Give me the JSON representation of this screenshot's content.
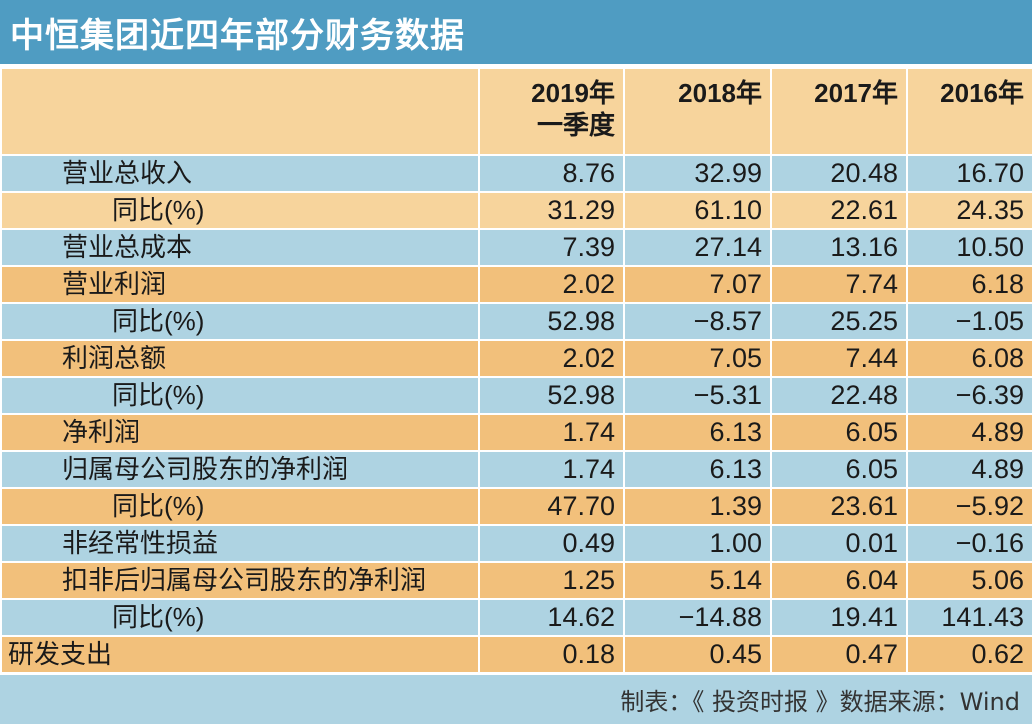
{
  "title": "中恒集团近四年部分财务数据",
  "colors": {
    "title_bg": "#4f9cc2",
    "header_bg": "#f7d49c",
    "row_blue": "#aed3e2",
    "row_peach": "#f7d49c",
    "row_orange": "#f2c07b"
  },
  "chart_data": {
    "type": "table",
    "title": "中恒集团近四年部分财务数据",
    "columns": [
      "",
      "2019年\n一季度",
      "2018年",
      "2017年",
      "2016年"
    ],
    "rows": [
      {
        "label": "营业总收入",
        "indent": 1,
        "color": "blue",
        "values": [
          "8.76",
          "32.99",
          "20.48",
          "16.70"
        ]
      },
      {
        "label": "同比(%)",
        "indent": 2,
        "color": "peach",
        "values": [
          "31.29",
          "61.10",
          "22.61",
          "24.35"
        ]
      },
      {
        "label": "营业总成本",
        "indent": 1,
        "color": "blue",
        "values": [
          "7.39",
          "27.14",
          "13.16",
          "10.50"
        ]
      },
      {
        "label": "营业利润",
        "indent": 1,
        "color": "orange",
        "values": [
          "2.02",
          "7.07",
          "7.74",
          "6.18"
        ]
      },
      {
        "label": "同比(%)",
        "indent": 2,
        "color": "blue",
        "values": [
          "52.98",
          "−8.57",
          "25.25",
          "−1.05"
        ]
      },
      {
        "label": "利润总额",
        "indent": 1,
        "color": "orange",
        "values": [
          "2.02",
          "7.05",
          "7.44",
          "6.08"
        ]
      },
      {
        "label": "同比(%)",
        "indent": 2,
        "color": "blue",
        "values": [
          "52.98",
          "−5.31",
          "22.48",
          "−6.39"
        ]
      },
      {
        "label": "净利润",
        "indent": 1,
        "color": "orange",
        "values": [
          "1.74",
          "6.13",
          "6.05",
          "4.89"
        ]
      },
      {
        "label": "归属母公司股东的净利润",
        "indent": 1,
        "color": "blue",
        "values": [
          "1.74",
          "6.13",
          "6.05",
          "4.89"
        ]
      },
      {
        "label": "同比(%)",
        "indent": 2,
        "color": "orange",
        "values": [
          "47.70",
          "1.39",
          "23.61",
          "−5.92"
        ]
      },
      {
        "label": "非经常性损益",
        "indent": 1,
        "color": "blue",
        "values": [
          "0.49",
          "1.00",
          "0.01",
          "−0.16"
        ]
      },
      {
        "label": "扣非后归属母公司股东的净利润",
        "indent": 1,
        "color": "orange",
        "values": [
          "1.25",
          "5.14",
          "6.04",
          "5.06"
        ]
      },
      {
        "label": "同比(%)",
        "indent": 2,
        "color": "blue",
        "values": [
          "14.62",
          "−14.88",
          "19.41",
          "141.43"
        ]
      },
      {
        "label": "研发支出",
        "indent": 0,
        "color": "orange",
        "values": [
          "0.18",
          "0.45",
          "0.47",
          "0.62"
        ]
      }
    ]
  },
  "footer": "制表：《 投资时报 》数据来源：Wind"
}
